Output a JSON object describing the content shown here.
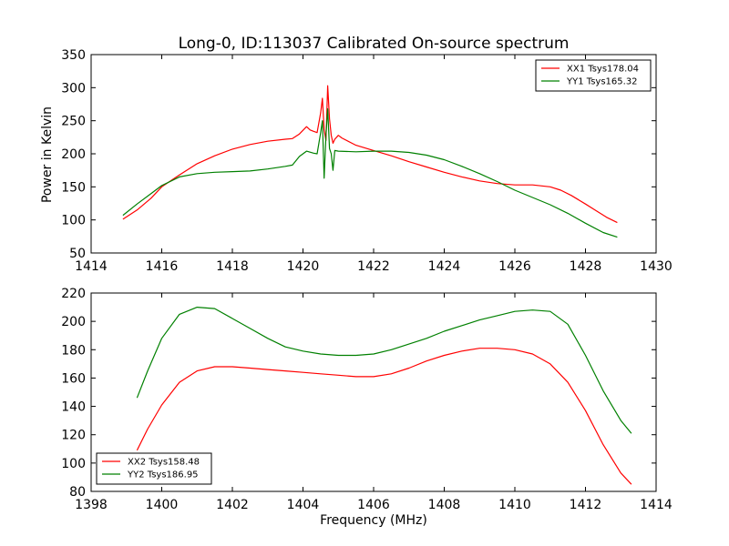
{
  "figure": {
    "title": "Long-0, ID:113037 Calibrated On-source spectrum",
    "ylabel": "Power in Kelvin",
    "xlabel": "Frequency (MHz)"
  },
  "colors": {
    "xx": "#ff0000",
    "yy": "#008000",
    "axes": "#000000",
    "background": "#ffffff"
  },
  "chart_data": [
    {
      "type": "line",
      "title": "Long-0, ID:113037 Calibrated On-source spectrum",
      "xlabel": "",
      "ylabel": "Power in Kelvin",
      "xlim": [
        1414,
        1430
      ],
      "ylim": [
        50,
        350
      ],
      "xticks": [
        1414,
        1416,
        1418,
        1420,
        1422,
        1424,
        1426,
        1428,
        1430
      ],
      "yticks": [
        50,
        100,
        150,
        200,
        250,
        300,
        350
      ],
      "grid": false,
      "legend_position": "top-right",
      "series": [
        {
          "name": "XX1 Tsys178.04",
          "color": "#ff0000",
          "x": [
            1414.9,
            1415.3,
            1415.7,
            1416.0,
            1416.5,
            1417.0,
            1417.5,
            1418.0,
            1418.5,
            1419.0,
            1419.5,
            1419.7,
            1419.9,
            1420.1,
            1420.2,
            1420.3,
            1420.4,
            1420.5,
            1420.55,
            1420.6,
            1420.65,
            1420.7,
            1420.75,
            1420.8,
            1420.85,
            1420.9,
            1421.0,
            1421.1,
            1421.5,
            1422.0,
            1422.5,
            1423.0,
            1423.5,
            1424.0,
            1424.5,
            1425.0,
            1425.5,
            1426.0,
            1426.5,
            1427.0,
            1427.3,
            1427.6,
            1428.0,
            1428.3,
            1428.6,
            1428.9
          ],
          "y": [
            101,
            115,
            133,
            150,
            168,
            185,
            197,
            207,
            214,
            219,
            222,
            223,
            230,
            241,
            236,
            234,
            232,
            262,
            284,
            237,
            220,
            303,
            253,
            228,
            216,
            222,
            228,
            224,
            213,
            205,
            197,
            188,
            180,
            172,
            165,
            159,
            155,
            153,
            153,
            150,
            145,
            137,
            124,
            114,
            104,
            96
          ]
        },
        {
          "name": "YY1 Tsys165.32",
          "color": "#008000",
          "x": [
            1414.9,
            1415.3,
            1415.7,
            1416.0,
            1416.5,
            1417.0,
            1417.5,
            1418.0,
            1418.5,
            1419.0,
            1419.5,
            1419.7,
            1419.9,
            1420.1,
            1420.3,
            1420.4,
            1420.5,
            1420.55,
            1420.6,
            1420.65,
            1420.7,
            1420.75,
            1420.8,
            1420.85,
            1420.9,
            1421.0,
            1421.5,
            1422.0,
            1422.5,
            1423.0,
            1423.5,
            1424.0,
            1424.5,
            1425.0,
            1425.5,
            1426.0,
            1426.5,
            1427.0,
            1427.5,
            1428.0,
            1428.5,
            1428.9
          ],
          "y": [
            107,
            124,
            140,
            152,
            165,
            170,
            172,
            173,
            174,
            177,
            181,
            183,
            196,
            204,
            201,
            200,
            232,
            250,
            163,
            228,
            268,
            208,
            200,
            175,
            205,
            204,
            203,
            204,
            204,
            202,
            198,
            191,
            181,
            170,
            158,
            145,
            134,
            123,
            110,
            95,
            81,
            74
          ]
        }
      ]
    },
    {
      "type": "line",
      "title": "",
      "xlabel": "Frequency (MHz)",
      "ylabel": "",
      "xlim": [
        1398,
        1414
      ],
      "ylim": [
        80,
        220
      ],
      "xticks": [
        1398,
        1400,
        1402,
        1404,
        1406,
        1408,
        1410,
        1412,
        1414
      ],
      "yticks": [
        80,
        100,
        120,
        140,
        160,
        180,
        200,
        220
      ],
      "grid": false,
      "legend_position": "bottom-left",
      "series": [
        {
          "name": "XX2 Tsys158.48",
          "color": "#ff0000",
          "x": [
            1399.3,
            1399.6,
            1400.0,
            1400.5,
            1401.0,
            1401.5,
            1402.0,
            1402.5,
            1403.0,
            1403.5,
            1404.0,
            1404.5,
            1405.0,
            1405.5,
            1406.0,
            1406.5,
            1407.0,
            1407.5,
            1408.0,
            1408.5,
            1409.0,
            1409.5,
            1410.0,
            1410.5,
            1411.0,
            1411.5,
            1412.0,
            1412.5,
            1413.0,
            1413.3
          ],
          "y": [
            109,
            124,
            141,
            157,
            165,
            168,
            168,
            167,
            166,
            165,
            164,
            163,
            162,
            161,
            161,
            163,
            167,
            172,
            176,
            179,
            181,
            181,
            180,
            177,
            170,
            157,
            137,
            113,
            93,
            85
          ]
        },
        {
          "name": "YY2 Tsys186.95",
          "color": "#008000",
          "x": [
            1399.3,
            1399.6,
            1400.0,
            1400.5,
            1401.0,
            1401.5,
            1402.0,
            1402.5,
            1403.0,
            1403.5,
            1404.0,
            1404.5,
            1405.0,
            1405.5,
            1406.0,
            1406.5,
            1407.0,
            1407.5,
            1408.0,
            1408.5,
            1409.0,
            1409.5,
            1410.0,
            1410.5,
            1411.0,
            1411.5,
            1412.0,
            1412.5,
            1413.0,
            1413.3
          ],
          "y": [
            146,
            165,
            188,
            205,
            210,
            209,
            202,
            195,
            188,
            182,
            179,
            177,
            176,
            176,
            177,
            180,
            184,
            188,
            193,
            197,
            201,
            204,
            207,
            208,
            207,
            198,
            176,
            151,
            130,
            121
          ]
        }
      ]
    }
  ]
}
